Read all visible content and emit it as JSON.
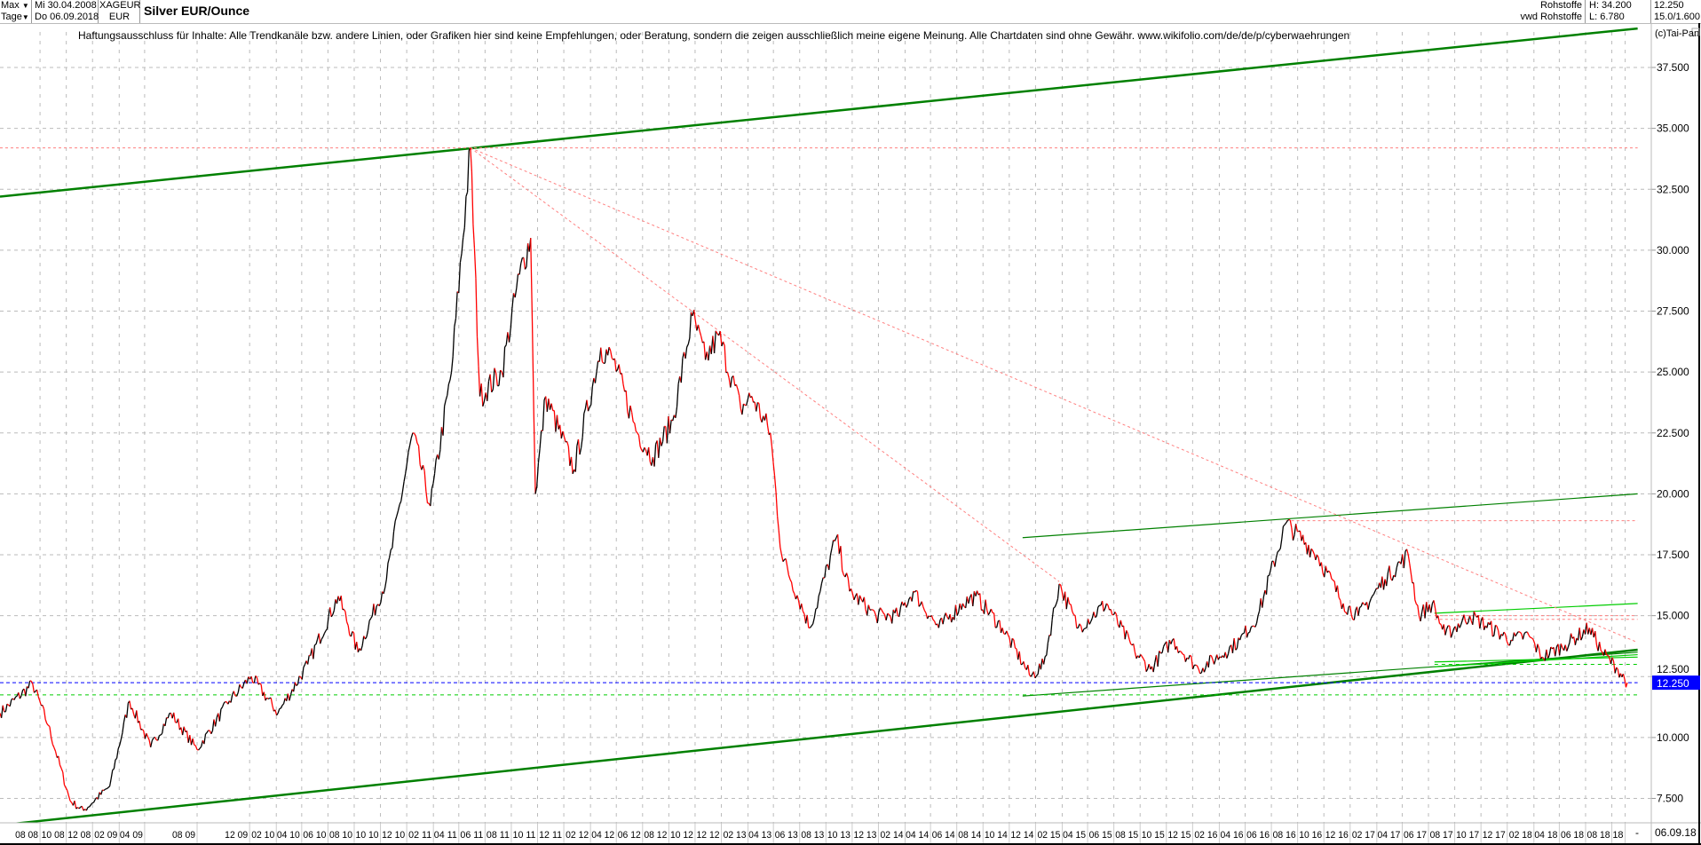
{
  "header": {
    "period": "Max",
    "interval": "Tage",
    "date_from": "Mi 30.04.2008",
    "date_to": "Do 06.09.2018",
    "symbol": "XAGEUR",
    "currency": "EUR",
    "title": "Silver EUR/Ounce",
    "source1": "Rohstoffe",
    "source2": "vwd Rohstoffe",
    "high": "H: 34.200",
    "low": "L: 6.780",
    "last": "12.250",
    "scale": "15.0/1.600",
    "copyright": "(c)Tai-Pan"
  },
  "disclaimer": "Haftungsausschluss für Inhalte: Alle Trendkanäle bzw. andere Linien, oder Grafiken hier sind keine Empfehlungen, oder Beratung, sondern die zeigen ausschließlich meine eigene Meinung. Alle Chartdaten sind ohne Gewähr.  www.wikifolio.com/de/de/p/cyberwaehrungen",
  "footer": {
    "dash": "-",
    "end_date": "06.09.18"
  },
  "colors": {
    "up": "#000000",
    "down": "#ff0000",
    "trend_dark": "#008000",
    "trend_light": "#00cc00",
    "resist": "#ff8080",
    "last_price": "#0000ff"
  },
  "chart_data": {
    "type": "line",
    "title": "Silver EUR/Ounce",
    "x_range": [
      "2008-04-30",
      "2018-09-06"
    ],
    "ylim": [
      6.0,
      39.5
    ],
    "yticks": [
      "7.500",
      "10.000",
      "12.500",
      "15.000",
      "17.500",
      "20.000",
      "22.500",
      "25.000",
      "27.500",
      "30.000",
      "32.500",
      "35.000",
      "37.500"
    ],
    "grid": true,
    "last_price": 12.25,
    "last_price_label": "12.250",
    "xtick_labels": [
      "08 08",
      "10 08",
      "12 08",
      "02 09",
      "04 09",
      "08 09",
      "12 09",
      "02 10",
      "04 10",
      "06 10",
      "08 10",
      "10 10",
      "12 10",
      "02 11",
      "04 11",
      "06 11",
      "08 11",
      "10 11",
      "12 11",
      "02 12",
      "04 12",
      "06 12",
      "08 12",
      "10 12",
      "12 12",
      "02 13",
      "04 13",
      "06 13",
      "08 13",
      "10 13",
      "12 13",
      "02 14",
      "04 14",
      "06 14",
      "08 14",
      "10 14",
      "12 14",
      "02 15",
      "04 15",
      "06 15",
      "08 15",
      "10 15",
      "12 15",
      "02 16",
      "04 16",
      "06 16",
      "08 16",
      "10 16",
      "12 16",
      "02 17",
      "04 17",
      "06 17",
      "08 17",
      "10 17",
      "12 17",
      "02 18",
      "04 18",
      "06 18",
      "08 18",
      "18"
    ],
    "xtick_dates": [
      "2008-08-01",
      "2008-10-01",
      "2008-12-01",
      "2009-02-01",
      "2009-04-01",
      "2009-08-01",
      "2009-12-01",
      "2010-02-01",
      "2010-04-01",
      "2010-06-01",
      "2010-08-01",
      "2010-10-01",
      "2010-12-01",
      "2011-02-01",
      "2011-04-01",
      "2011-06-01",
      "2011-08-01",
      "2011-10-01",
      "2011-12-01",
      "2012-02-01",
      "2012-04-01",
      "2012-06-01",
      "2012-08-01",
      "2012-10-01",
      "2012-12-01",
      "2013-02-01",
      "2013-04-01",
      "2013-06-01",
      "2013-08-01",
      "2013-10-01",
      "2013-12-01",
      "2014-02-01",
      "2014-04-01",
      "2014-06-01",
      "2014-08-01",
      "2014-10-01",
      "2014-12-01",
      "2015-02-01",
      "2015-04-01",
      "2015-06-01",
      "2015-08-01",
      "2015-10-01",
      "2015-12-01",
      "2016-02-01",
      "2016-04-01",
      "2016-06-01",
      "2016-08-01",
      "2016-10-01",
      "2016-12-01",
      "2017-02-01",
      "2017-04-01",
      "2017-06-01",
      "2017-08-01",
      "2017-10-01",
      "2017-12-01",
      "2018-02-01",
      "2018-04-01",
      "2018-06-01",
      "2018-08-01",
      "2018-09-01"
    ],
    "price_points": [
      [
        "2008-04-30",
        11.0
      ],
      [
        "2008-07-15",
        12.2
      ],
      [
        "2008-08-20",
        10.5
      ],
      [
        "2008-10-10",
        7.4
      ],
      [
        "2008-11-10",
        7.0
      ],
      [
        "2009-01-10",
        8.0
      ],
      [
        "2009-02-25",
        11.5
      ],
      [
        "2009-04-15",
        9.6
      ],
      [
        "2009-06-01",
        11.0
      ],
      [
        "2009-08-01",
        9.5
      ],
      [
        "2009-10-15",
        11.5
      ],
      [
        "2009-12-05",
        12.5
      ],
      [
        "2010-02-05",
        11.0
      ],
      [
        "2010-04-15",
        13.0
      ],
      [
        "2010-06-25",
        15.8
      ],
      [
        "2010-08-10",
        13.5
      ],
      [
        "2010-10-15",
        16.5
      ],
      [
        "2010-12-15",
        22.5
      ],
      [
        "2011-01-25",
        19.5
      ],
      [
        "2011-03-15",
        25.0
      ],
      [
        "2011-04-28",
        34.2
      ],
      [
        "2011-05-20",
        24.0
      ],
      [
        "2011-07-10",
        25.0
      ],
      [
        "2011-08-20",
        29.0
      ],
      [
        "2011-09-15",
        30.5
      ],
      [
        "2011-09-26",
        20.0
      ],
      [
        "2011-10-20",
        24.0
      ],
      [
        "2011-12-25",
        21.0
      ],
      [
        "2012-02-25",
        26.0
      ],
      [
        "2012-03-25",
        25.5
      ],
      [
        "2012-05-20",
        22.5
      ],
      [
        "2012-06-25",
        21.5
      ],
      [
        "2012-08-10",
        23.0
      ],
      [
        "2012-09-25",
        27.3
      ],
      [
        "2012-10-25",
        25.5
      ],
      [
        "2012-11-25",
        26.5
      ],
      [
        "2013-01-15",
        23.5
      ],
      [
        "2013-02-10",
        24.0
      ],
      [
        "2013-03-25",
        22.5
      ],
      [
        "2013-04-20",
        17.5
      ],
      [
        "2013-06-25",
        14.5
      ],
      [
        "2013-08-25",
        18.2
      ],
      [
        "2013-09-25",
        16.0
      ],
      [
        "2013-11-25",
        15.0
      ],
      [
        "2014-01-15",
        15.0
      ],
      [
        "2014-02-20",
        16.0
      ],
      [
        "2014-04-20",
        14.5
      ],
      [
        "2014-06-15",
        15.5
      ],
      [
        "2014-07-15",
        15.8
      ],
      [
        "2014-09-15",
        14.5
      ],
      [
        "2014-11-20",
        12.5
      ],
      [
        "2014-12-20",
        13.0
      ],
      [
        "2015-01-25",
        16.3
      ],
      [
        "2015-03-10",
        14.5
      ],
      [
        "2015-05-15",
        15.5
      ],
      [
        "2015-07-20",
        13.5
      ],
      [
        "2015-08-25",
        12.8
      ],
      [
        "2015-10-15",
        14.0
      ],
      [
        "2015-12-15",
        12.8
      ],
      [
        "2016-02-15",
        13.5
      ],
      [
        "2016-03-20",
        14.0
      ],
      [
        "2016-05-01",
        15.0
      ],
      [
        "2016-07-05",
        18.8
      ],
      [
        "2016-09-15",
        17.5
      ],
      [
        "2016-11-15",
        15.5
      ],
      [
        "2016-12-20",
        15.0
      ],
      [
        "2017-02-20",
        16.5
      ],
      [
        "2017-04-15",
        17.5
      ],
      [
        "2017-05-10",
        15.0
      ],
      [
        "2017-06-10",
        15.5
      ],
      [
        "2017-07-10",
        14.2
      ],
      [
        "2017-09-05",
        15.0
      ],
      [
        "2017-12-10",
        14.0
      ],
      [
        "2018-01-20",
        14.2
      ],
      [
        "2018-02-20",
        13.3
      ],
      [
        "2018-04-15",
        13.8
      ],
      [
        "2018-06-10",
        14.5
      ],
      [
        "2018-07-10",
        13.5
      ],
      [
        "2018-08-15",
        12.8
      ],
      [
        "2018-09-06",
        12.25
      ]
    ],
    "trend_lines": [
      {
        "style": "thick-dark",
        "from": [
          "2008-04-30",
          32.2
        ],
        "to": [
          "2018-09-30",
          39.1
        ]
      },
      {
        "style": "thick-dark",
        "from": [
          "2008-04-30",
          6.4
        ],
        "to": [
          "2018-09-30",
          13.6
        ]
      },
      {
        "style": "thin-dark",
        "from": [
          "2014-11-01",
          18.2
        ],
        "to": [
          "2018-09-30",
          20.0
        ]
      },
      {
        "style": "thin-dark",
        "from": [
          "2014-11-01",
          11.7
        ],
        "to": [
          "2018-09-30",
          13.5
        ]
      },
      {
        "style": "thin-light",
        "from": [
          "2017-06-15",
          15.1
        ],
        "to": [
          "2018-09-30",
          15.5
        ]
      },
      {
        "style": "thin-light",
        "from": [
          "2017-06-15",
          12.9
        ],
        "to": [
          "2018-09-30",
          13.4
        ]
      },
      {
        "style": "thin-light",
        "from": [
          "2017-06-15",
          13.1
        ],
        "to": [
          "2018-09-30",
          13.3
        ]
      },
      {
        "style": "dotted-resist",
        "from": [
          "2011-04-28",
          34.2
        ],
        "to": [
          "2018-09-30",
          13.9
        ]
      },
      {
        "style": "dotted-resist",
        "from": [
          "2011-04-28",
          34.2
        ],
        "to": [
          "2015-01-25",
          16.4
        ]
      },
      {
        "style": "dotted-resist",
        "from": [
          "2008-04-30",
          34.2
        ],
        "to": [
          "2018-09-30",
          34.2
        ]
      },
      {
        "style": "dotted-resist",
        "from": [
          "2016-07-05",
          18.9
        ],
        "to": [
          "2018-09-30",
          18.9
        ]
      },
      {
        "style": "dotted-resist",
        "from": [
          "2017-06-15",
          15.0
        ],
        "to": [
          "2018-09-30",
          15.0
        ]
      },
      {
        "style": "dotted-resist",
        "from": [
          "2017-06-15",
          14.85
        ],
        "to": [
          "2018-09-30",
          14.85
        ]
      },
      {
        "style": "dashed-support",
        "from": [
          "2008-04-30",
          11.75
        ],
        "to": [
          "2018-09-30",
          11.75
        ]
      },
      {
        "style": "dashed-support",
        "from": [
          "2017-06-15",
          13.0
        ],
        "to": [
          "2018-09-30",
          13.0
        ]
      },
      {
        "style": "dotted-last",
        "from": [
          "2008-04-30",
          12.25
        ],
        "to": [
          "2018-09-30",
          12.25
        ]
      }
    ]
  }
}
